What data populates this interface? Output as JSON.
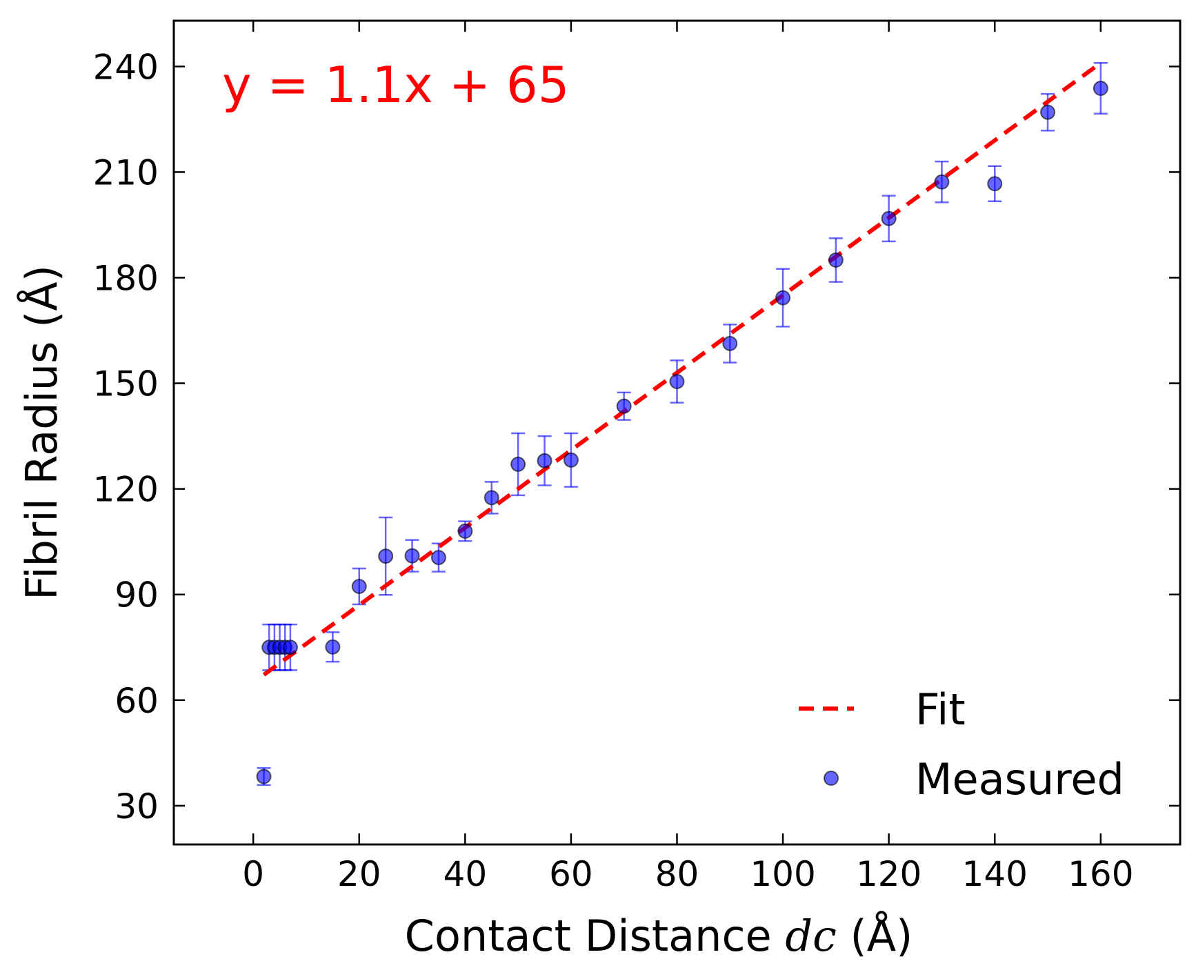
{
  "chart_data": {
    "type": "scatter",
    "title": "",
    "xlabel_pre": "Contact Distance ",
    "xlabel_var": "dc",
    "xlabel_post": " (Å)",
    "ylabel": "Fibril Radius (Å)",
    "xlim": [
      -15,
      175
    ],
    "ylim": [
      19,
      253
    ],
    "xticks": [
      0,
      20,
      40,
      60,
      80,
      100,
      120,
      140,
      160
    ],
    "yticks": [
      30,
      60,
      90,
      120,
      150,
      180,
      210,
      240
    ],
    "grid": false,
    "legend_position": "bottom-right",
    "annotation": {
      "text": "y = 1.1x + 65",
      "color": "#ff0000"
    },
    "series": [
      {
        "name": "Fit",
        "kind": "line",
        "style": "dashed",
        "color": "#ff0000",
        "x": [
          2,
          160
        ],
        "y": [
          67.2,
          241
        ]
      },
      {
        "name": "Measured",
        "kind": "scatter_errorbar",
        "color": "#0000ff",
        "points": [
          {
            "x": 2,
            "y": 38.3,
            "err": 2.4
          },
          {
            "x": 3,
            "y": 75,
            "err": 6.5
          },
          {
            "x": 4,
            "y": 75,
            "err": 6.5
          },
          {
            "x": 5,
            "y": 75,
            "err": 6.5
          },
          {
            "x": 6,
            "y": 75,
            "err": 6.5
          },
          {
            "x": 7,
            "y": 75,
            "err": 6.5
          },
          {
            "x": 15,
            "y": 75.1,
            "err": 4.2
          },
          {
            "x": 20,
            "y": 92.3,
            "err": 5.1
          },
          {
            "x": 25,
            "y": 100.9,
            "err": 11.0
          },
          {
            "x": 30,
            "y": 101.0,
            "err": 4.5
          },
          {
            "x": 35,
            "y": 100.5,
            "err": 4.0
          },
          {
            "x": 40,
            "y": 108.0,
            "err": 2.8
          },
          {
            "x": 45,
            "y": 117.5,
            "err": 4.5
          },
          {
            "x": 50,
            "y": 127.0,
            "err": 8.8
          },
          {
            "x": 55,
            "y": 128.0,
            "err": 7.0
          },
          {
            "x": 60,
            "y": 128.2,
            "err": 7.6
          },
          {
            "x": 70,
            "y": 143.5,
            "err": 3.9
          },
          {
            "x": 80,
            "y": 150.5,
            "err": 6.0
          },
          {
            "x": 90,
            "y": 161.3,
            "err": 5.4
          },
          {
            "x": 100,
            "y": 174.3,
            "err": 8.2
          },
          {
            "x": 110,
            "y": 185.0,
            "err": 6.2
          },
          {
            "x": 120,
            "y": 196.8,
            "err": 6.5
          },
          {
            "x": 130,
            "y": 207.2,
            "err": 5.8
          },
          {
            "x": 140,
            "y": 206.7,
            "err": 5.0
          },
          {
            "x": 150,
            "y": 227.0,
            "err": 5.2
          },
          {
            "x": 160,
            "y": 233.8,
            "err": 7.2
          }
        ]
      }
    ]
  }
}
